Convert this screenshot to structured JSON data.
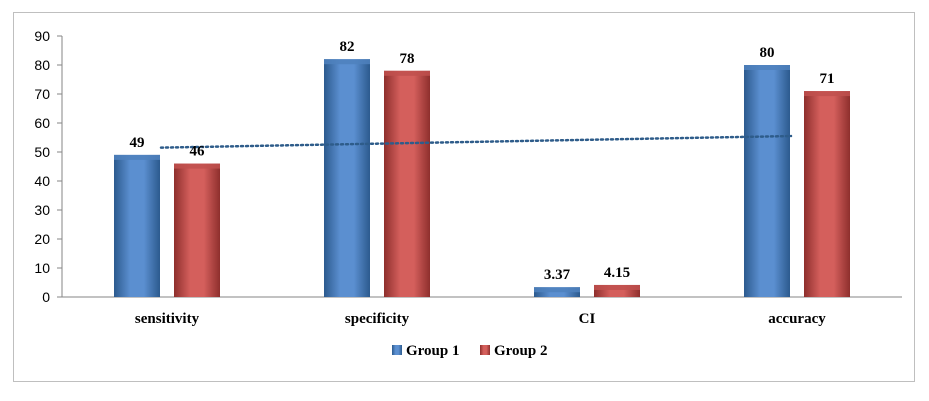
{
  "chart_data": {
    "type": "bar",
    "title": "",
    "xlabel": "",
    "ylabel": "",
    "categories": [
      "sensitivity",
      "specificity",
      "CI",
      "accuracy"
    ],
    "series": [
      {
        "name": "Group 1",
        "values": [
          49,
          82,
          3.37,
          80
        ],
        "labels": [
          "49",
          "82",
          "3.37",
          "80"
        ],
        "color": "#4f81bd"
      },
      {
        "name": "Group 2",
        "values": [
          46,
          78,
          4.15,
          71
        ],
        "labels": [
          "46",
          "78",
          "4.15",
          "71"
        ],
        "color": "#c0504d"
      }
    ],
    "ylim": [
      0,
      90
    ],
    "yticks": [
      0,
      10,
      20,
      30,
      40,
      50,
      60,
      70,
      80,
      90
    ],
    "yticks_labels": [
      "0",
      "10",
      "20",
      "30",
      "40",
      "50",
      "60",
      "70",
      "80",
      "90"
    ],
    "grid": false,
    "legend": "bottom",
    "trendline": {
      "series": "Group 1",
      "style": "dotted",
      "color": "#2e5c8a",
      "start_value": 51.5,
      "end_value": 55.5
    }
  }
}
